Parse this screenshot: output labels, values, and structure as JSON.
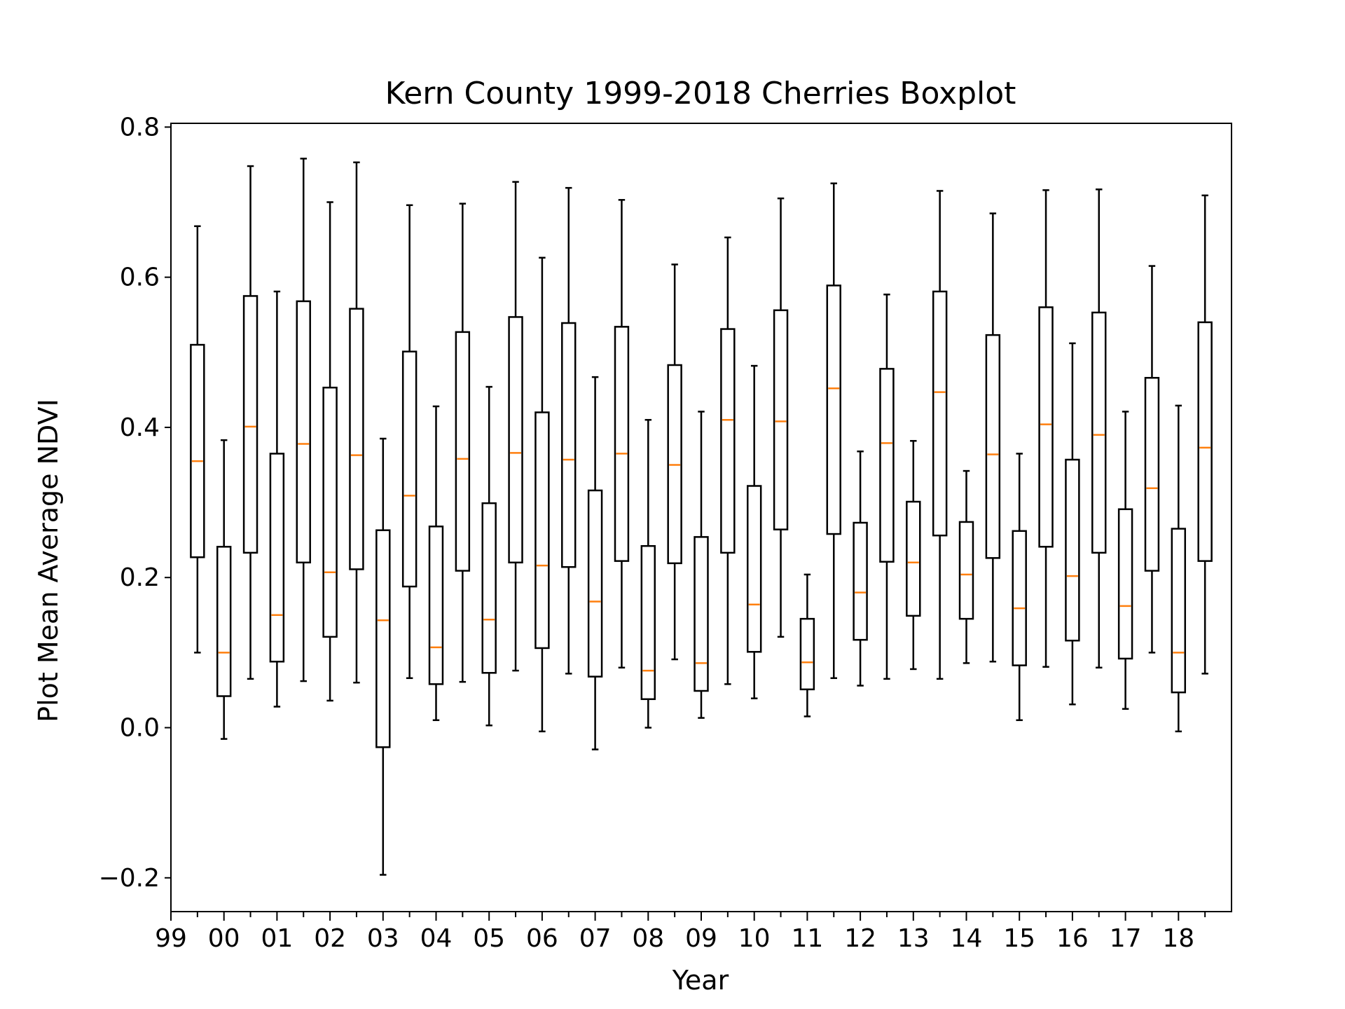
{
  "chart_data": {
    "type": "boxplot",
    "title": "Kern County 1999-2018 Cherries Boxplot",
    "xlabel": "Year",
    "ylabel": "Plot Mean Average NDVI",
    "ylim": [
      -0.245,
      0.805
    ],
    "y_ticks": [
      {
        "value": -0.2,
        "label": "−0.2"
      },
      {
        "value": 0.0,
        "label": "0.0"
      },
      {
        "value": 0.2,
        "label": "0.2"
      },
      {
        "value": 0.4,
        "label": "0.4"
      },
      {
        "value": 0.6,
        "label": "0.6"
      },
      {
        "value": 0.8,
        "label": "0.8"
      }
    ],
    "x_tick_labels": [
      "99",
      "00",
      "01",
      "02",
      "03",
      "04",
      "05",
      "06",
      "07",
      "08",
      "09",
      "10",
      "11",
      "12",
      "13",
      "14",
      "15",
      "16",
      "17",
      "18"
    ],
    "grid": false,
    "colors": {
      "box": "#000000",
      "median": "#ff7f0e"
    },
    "boxes": [
      {
        "whislo": 0.1,
        "q1": 0.227,
        "med": 0.355,
        "q3": 0.51,
        "whishi": 0.668
      },
      {
        "whislo": -0.015,
        "q1": 0.042,
        "med": 0.1,
        "q3": 0.241,
        "whishi": 0.383
      },
      {
        "whislo": 0.065,
        "q1": 0.233,
        "med": 0.401,
        "q3": 0.575,
        "whishi": 0.748
      },
      {
        "whislo": 0.028,
        "q1": 0.088,
        "med": 0.15,
        "q3": 0.365,
        "whishi": 0.581
      },
      {
        "whislo": 0.062,
        "q1": 0.22,
        "med": 0.378,
        "q3": 0.568,
        "whishi": 0.758
      },
      {
        "whislo": 0.036,
        "q1": 0.121,
        "med": 0.207,
        "q3": 0.453,
        "whishi": 0.7
      },
      {
        "whislo": 0.06,
        "q1": 0.211,
        "med": 0.363,
        "q3": 0.558,
        "whishi": 0.753
      },
      {
        "whislo": -0.196,
        "q1": -0.026,
        "med": 0.143,
        "q3": 0.263,
        "whishi": 0.385
      },
      {
        "whislo": 0.066,
        "q1": 0.188,
        "med": 0.309,
        "q3": 0.501,
        "whishi": 0.696
      },
      {
        "whislo": 0.01,
        "q1": 0.058,
        "med": 0.107,
        "q3": 0.268,
        "whishi": 0.428
      },
      {
        "whislo": 0.061,
        "q1": 0.209,
        "med": 0.358,
        "q3": 0.527,
        "whishi": 0.698
      },
      {
        "whislo": 0.003,
        "q1": 0.073,
        "med": 0.144,
        "q3": 0.299,
        "whishi": 0.454
      },
      {
        "whislo": 0.076,
        "q1": 0.22,
        "med": 0.366,
        "q3": 0.547,
        "whishi": 0.727
      },
      {
        "whislo": -0.005,
        "q1": 0.106,
        "med": 0.216,
        "q3": 0.42,
        "whishi": 0.626
      },
      {
        "whislo": 0.072,
        "q1": 0.214,
        "med": 0.357,
        "q3": 0.539,
        "whishi": 0.719
      },
      {
        "whislo": -0.029,
        "q1": 0.068,
        "med": 0.168,
        "q3": 0.316,
        "whishi": 0.467
      },
      {
        "whislo": 0.08,
        "q1": 0.222,
        "med": 0.365,
        "q3": 0.534,
        "whishi": 0.703
      },
      {
        "whislo": 0.0,
        "q1": 0.038,
        "med": 0.076,
        "q3": 0.242,
        "whishi": 0.41
      },
      {
        "whislo": 0.091,
        "q1": 0.219,
        "med": 0.35,
        "q3": 0.483,
        "whishi": 0.617
      },
      {
        "whislo": 0.013,
        "q1": 0.049,
        "med": 0.086,
        "q3": 0.254,
        "whishi": 0.421
      },
      {
        "whislo": 0.058,
        "q1": 0.233,
        "med": 0.41,
        "q3": 0.531,
        "whishi": 0.653
      },
      {
        "whislo": 0.039,
        "q1": 0.101,
        "med": 0.164,
        "q3": 0.322,
        "whishi": 0.482
      },
      {
        "whislo": 0.121,
        "q1": 0.264,
        "med": 0.408,
        "q3": 0.556,
        "whishi": 0.705
      },
      {
        "whislo": 0.015,
        "q1": 0.051,
        "med": 0.087,
        "q3": 0.145,
        "whishi": 0.204
      },
      {
        "whislo": 0.066,
        "q1": 0.258,
        "med": 0.452,
        "q3": 0.589,
        "whishi": 0.725
      },
      {
        "whislo": 0.056,
        "q1": 0.117,
        "med": 0.18,
        "q3": 0.273,
        "whishi": 0.368
      },
      {
        "whislo": 0.065,
        "q1": 0.221,
        "med": 0.379,
        "q3": 0.478,
        "whishi": 0.577
      },
      {
        "whislo": 0.078,
        "q1": 0.149,
        "med": 0.22,
        "q3": 0.301,
        "whishi": 0.382
      },
      {
        "whislo": 0.065,
        "q1": 0.256,
        "med": 0.447,
        "q3": 0.581,
        "whishi": 0.715
      },
      {
        "whislo": 0.086,
        "q1": 0.145,
        "med": 0.204,
        "q3": 0.274,
        "whishi": 0.342
      },
      {
        "whislo": 0.088,
        "q1": 0.226,
        "med": 0.364,
        "q3": 0.523,
        "whishi": 0.685
      },
      {
        "whislo": 0.01,
        "q1": 0.083,
        "med": 0.159,
        "q3": 0.262,
        "whishi": 0.365
      },
      {
        "whislo": 0.081,
        "q1": 0.241,
        "med": 0.404,
        "q3": 0.56,
        "whishi": 0.716
      },
      {
        "whislo": 0.031,
        "q1": 0.116,
        "med": 0.202,
        "q3": 0.357,
        "whishi": 0.512
      },
      {
        "whislo": 0.08,
        "q1": 0.233,
        "med": 0.39,
        "q3": 0.553,
        "whishi": 0.717
      },
      {
        "whislo": 0.025,
        "q1": 0.092,
        "med": 0.162,
        "q3": 0.291,
        "whishi": 0.421
      },
      {
        "whislo": 0.1,
        "q1": 0.209,
        "med": 0.319,
        "q3": 0.466,
        "whishi": 0.615
      },
      {
        "whislo": -0.005,
        "q1": 0.047,
        "med": 0.1,
        "q3": 0.265,
        "whishi": 0.429
      },
      {
        "whislo": 0.072,
        "q1": 0.222,
        "med": 0.373,
        "q3": 0.54,
        "whishi": 0.709
      }
    ]
  }
}
